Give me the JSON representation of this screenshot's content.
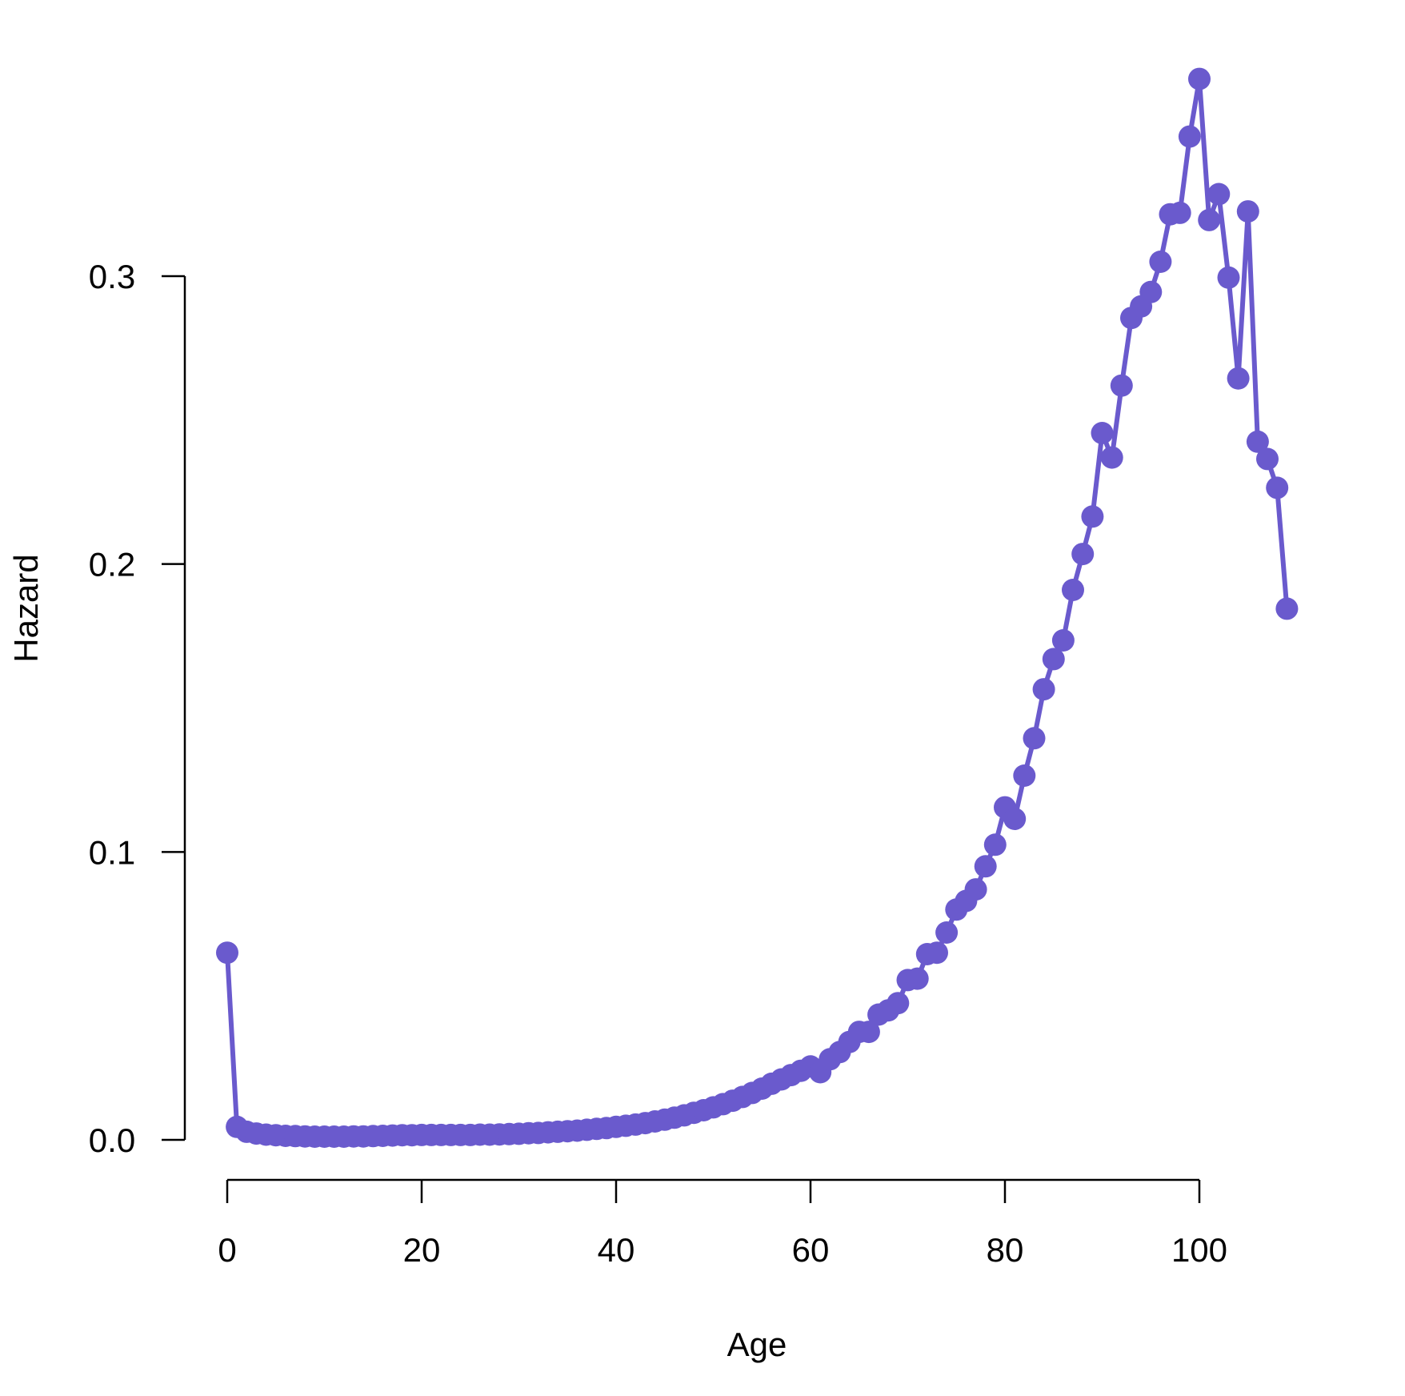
{
  "chart_data": {
    "type": "line",
    "xlabel": "Age",
    "ylabel": "Hazard",
    "xlim": [
      0,
      110
    ],
    "ylim": [
      0,
      0.37
    ],
    "x_ticks": [
      0,
      20,
      40,
      60,
      80,
      100
    ],
    "x_tick_labels": [
      "0",
      "20",
      "40",
      "60",
      "80",
      "100"
    ],
    "y_ticks": [
      0.0,
      0.1,
      0.2,
      0.3
    ],
    "y_tick_labels": [
      "0.0",
      "0.1",
      "0.2",
      "0.3"
    ],
    "grid": false,
    "markers": true,
    "series": [
      {
        "color": "#6A5ACD",
        "x": [
          0,
          1,
          2,
          3,
          4,
          5,
          6,
          7,
          8,
          9,
          10,
          11,
          12,
          13,
          14,
          15,
          16,
          17,
          18,
          19,
          20,
          21,
          22,
          23,
          24,
          25,
          26,
          27,
          28,
          29,
          30,
          31,
          32,
          33,
          34,
          35,
          36,
          37,
          38,
          39,
          40,
          41,
          42,
          43,
          44,
          45,
          46,
          47,
          48,
          49,
          50,
          51,
          52,
          53,
          54,
          55,
          56,
          57,
          58,
          59,
          60,
          61,
          62,
          63,
          64,
          65,
          66,
          67,
          68,
          69,
          70,
          71,
          72,
          73,
          74,
          75,
          76,
          77,
          78,
          79,
          80,
          81,
          82,
          83,
          84,
          85,
          86,
          87,
          88,
          89,
          90,
          91,
          92,
          93,
          94,
          95,
          96,
          97,
          98,
          99,
          100,
          101,
          102,
          103,
          104,
          105,
          106,
          107,
          108,
          109
        ],
        "y": [
          0.065,
          0.0045,
          0.0028,
          0.0022,
          0.0018,
          0.0016,
          0.0014,
          0.0013,
          0.0012,
          0.0011,
          0.0011,
          0.0011,
          0.0011,
          0.0012,
          0.0012,
          0.0013,
          0.0014,
          0.0015,
          0.0016,
          0.0016,
          0.0017,
          0.0017,
          0.0017,
          0.0017,
          0.0017,
          0.0017,
          0.0018,
          0.0018,
          0.0019,
          0.002,
          0.0021,
          0.0023,
          0.0024,
          0.0026,
          0.0028,
          0.003,
          0.0032,
          0.0035,
          0.0038,
          0.0041,
          0.0045,
          0.0049,
          0.0053,
          0.0058,
          0.0064,
          0.007,
          0.0077,
          0.0085,
          0.0094,
          0.0103,
          0.0113,
          0.0124,
          0.0136,
          0.0149,
          0.0163,
          0.0178,
          0.0195,
          0.021,
          0.0225,
          0.024,
          0.0255,
          0.0235,
          0.028,
          0.0305,
          0.034,
          0.0375,
          0.0375,
          0.0435,
          0.045,
          0.0475,
          0.0555,
          0.056,
          0.0645,
          0.065,
          0.072,
          0.08,
          0.083,
          0.087,
          0.095,
          0.1025,
          0.1155,
          0.1115,
          0.1265,
          0.1395,
          0.1565,
          0.167,
          0.1735,
          0.191,
          0.2035,
          0.2165,
          0.2455,
          0.237,
          0.262,
          0.2855,
          0.2895,
          0.2945,
          0.305,
          0.3215,
          0.322,
          0.3485,
          0.3685,
          0.3195,
          0.3285,
          0.2995,
          0.2645,
          0.3225,
          0.2425,
          0.2365,
          0.2265,
          0.1845
        ]
      }
    ]
  }
}
